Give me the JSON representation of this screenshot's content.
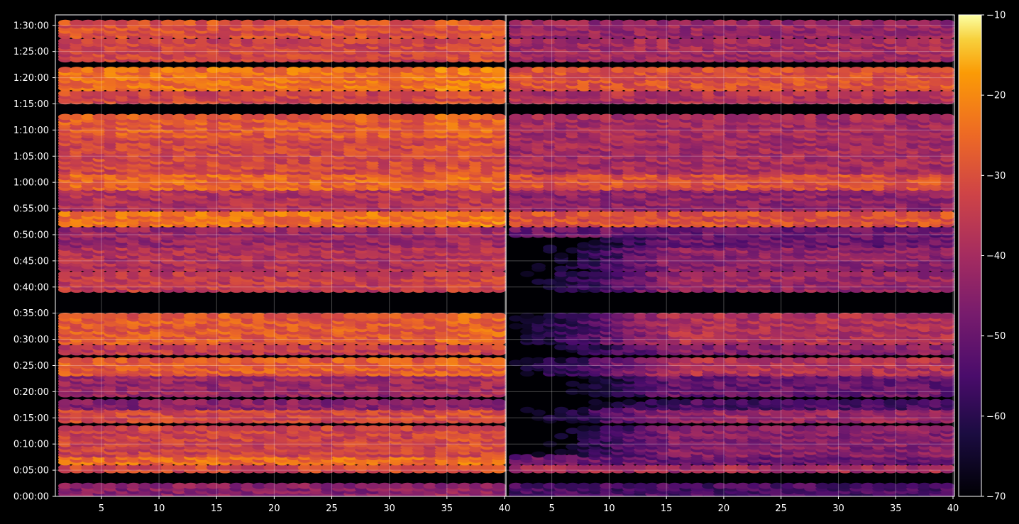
{
  "chart_data": {
    "type": "heatmap",
    "title": "",
    "xlabel": "",
    "ylabel": "",
    "panels": [
      {
        "name": "",
        "xlim": [
          1,
          40
        ],
        "xticks": [
          5,
          10,
          15,
          20,
          25,
          30,
          35,
          40
        ],
        "grid": true
      },
      {
        "name": "",
        "xlim": [
          1,
          40
        ],
        "xticks": [
          5,
          10,
          15,
          20,
          25,
          30,
          35,
          40
        ],
        "grid": true
      }
    ],
    "y_axis": {
      "unit": "time",
      "ylim_seconds": [
        0,
        5520
      ],
      "ticks": [
        {
          "label": "0:00:00",
          "seconds": 0
        },
        {
          "label": "0:05:00",
          "seconds": 300
        },
        {
          "label": "0:10:00",
          "seconds": 600
        },
        {
          "label": "0:15:00",
          "seconds": 900
        },
        {
          "label": "0:20:00",
          "seconds": 1200
        },
        {
          "label": "0:25:00",
          "seconds": 1500
        },
        {
          "label": "0:30:00",
          "seconds": 1800
        },
        {
          "label": "0:35:00",
          "seconds": 2100
        },
        {
          "label": "0:40:00",
          "seconds": 2400
        },
        {
          "label": "0:45:00",
          "seconds": 2700
        },
        {
          "label": "0:50:00",
          "seconds": 3000
        },
        {
          "label": "0:55:00",
          "seconds": 3300
        },
        {
          "label": "1:00:00",
          "seconds": 3600
        },
        {
          "label": "1:05:00",
          "seconds": 3900
        },
        {
          "label": "1:10:00",
          "seconds": 4200
        },
        {
          "label": "1:15:00",
          "seconds": 4500
        },
        {
          "label": "1:20:00",
          "seconds": 4800
        },
        {
          "label": "1:25:00",
          "seconds": 5100
        },
        {
          "label": "1:30:00",
          "seconds": 5400
        }
      ]
    },
    "colorbar": {
      "colormap": "inferno",
      "range": [
        -70,
        -10
      ],
      "ticks": [
        "-10",
        "-20",
        "-30",
        "-40",
        "-50",
        "-60",
        "-70"
      ]
    },
    "bands_note_seconds": [
      {
        "from": 0,
        "to": 120,
        "left": -45,
        "right": -55
      },
      {
        "from": 290,
        "to": 350,
        "left": -32,
        "right": -40
      },
      {
        "from": 380,
        "to": 460,
        "left": -25,
        "right": -50
      },
      {
        "from": 470,
        "to": 780,
        "left": -33,
        "right": -45
      },
      {
        "from": 870,
        "to": 1000,
        "left": -32,
        "right": -42
      },
      {
        "from": 1020,
        "to": 1100,
        "left": -45,
        "right": -55
      },
      {
        "from": 1150,
        "to": 1380,
        "left": -42,
        "right": -50
      },
      {
        "from": 1410,
        "to": 1560,
        "left": -28,
        "right": -38
      },
      {
        "from": 1650,
        "to": 1730,
        "left": -35,
        "right": -45
      },
      {
        "from": 1750,
        "to": 2070,
        "left": -28,
        "right": -38
      },
      {
        "from": 2370,
        "to": 2550,
        "left": -35,
        "right": -42
      },
      {
        "from": 2600,
        "to": 2850,
        "left": -38,
        "right": -44
      },
      {
        "from": 2880,
        "to": 3060,
        "left": -42,
        "right": -50
      },
      {
        "from": 3100,
        "to": 3260,
        "left": -24,
        "right": -30
      },
      {
        "from": 3280,
        "to": 3520,
        "left": -38,
        "right": -44
      },
      {
        "from": 3530,
        "to": 3700,
        "left": -26,
        "right": -30
      },
      {
        "from": 3720,
        "to": 4130,
        "left": -32,
        "right": -40
      },
      {
        "from": 4130,
        "to": 4370,
        "left": -28,
        "right": -40
      },
      {
        "from": 4510,
        "to": 4640,
        "left": -32,
        "right": -38
      },
      {
        "from": 4680,
        "to": 4910,
        "left": -24,
        "right": -30
      },
      {
        "from": 5000,
        "to": 5230,
        "left": -33,
        "right": -40
      },
      {
        "from": 5280,
        "to": 5440,
        "left": -30,
        "right": -42
      }
    ]
  }
}
